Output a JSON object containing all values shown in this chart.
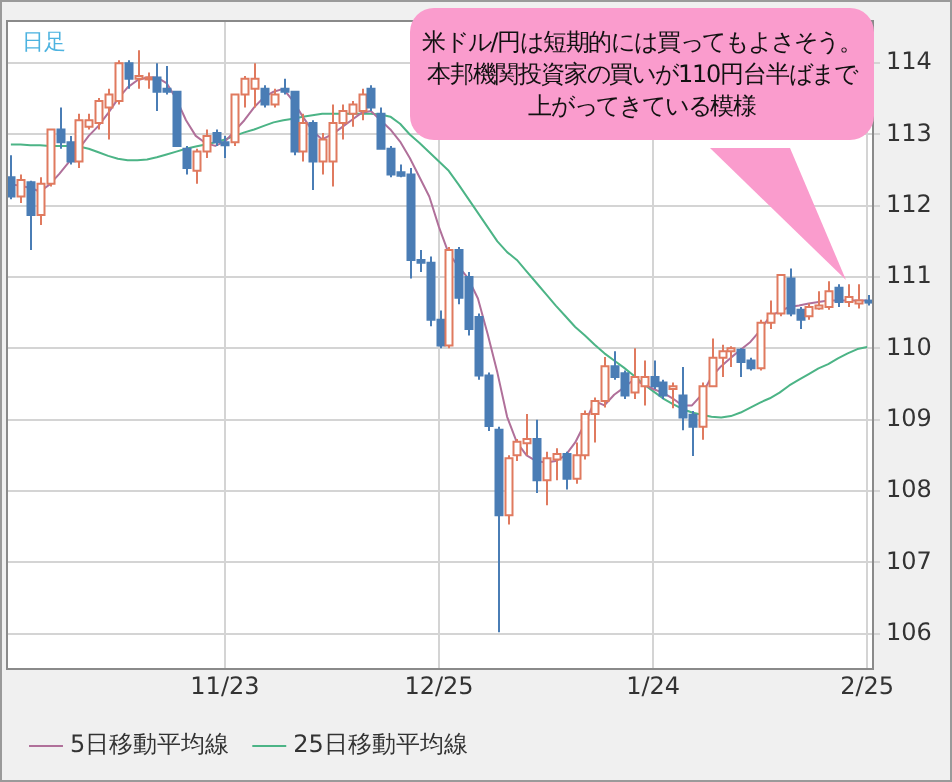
{
  "chart_data": {
    "type": "candlestick",
    "subtitle": "日足",
    "categories": [
      null,
      null,
      null,
      null,
      null,
      null,
      null,
      null,
      null,
      null,
      null,
      null,
      null,
      null,
      null,
      null,
      null,
      null,
      null,
      null,
      null,
      null,
      "11/23",
      null,
      null,
      null,
      null,
      null,
      null,
      null,
      null,
      null,
      null,
      null,
      null,
      null,
      null,
      null,
      null,
      null,
      null,
      null,
      null,
      null,
      "12/25",
      null,
      null,
      null,
      null,
      null,
      null,
      null,
      null,
      null,
      null,
      null,
      null,
      null,
      null,
      null,
      null,
      null,
      null,
      null,
      null,
      null,
      "1/24",
      null,
      null,
      null,
      null,
      null,
      null,
      null,
      null,
      null,
      null,
      null,
      null,
      null,
      null,
      null,
      null,
      null,
      null,
      null,
      null,
      null,
      "2/25"
    ],
    "ohlc": [
      [
        112.4,
        112.71,
        112.09,
        112.13
      ],
      [
        112.13,
        112.44,
        112.04,
        112.36
      ],
      [
        112.33,
        112.35,
        111.38,
        111.87
      ],
      [
        111.87,
        112.4,
        111.73,
        112.31
      ],
      [
        112.31,
        113.07,
        112.27,
        113.07
      ],
      [
        113.07,
        113.38,
        112.8,
        112.89
      ],
      [
        112.89,
        112.98,
        112.58,
        112.62
      ],
      [
        112.62,
        113.29,
        112.53,
        113.2
      ],
      [
        113.11,
        113.29,
        113.07,
        113.2
      ],
      [
        113.16,
        113.51,
        113.07,
        113.47
      ],
      [
        113.38,
        113.64,
        112.93,
        113.56
      ],
      [
        113.47,
        114.04,
        113.42,
        114.0
      ],
      [
        114.0,
        114.04,
        113.64,
        113.78
      ],
      [
        113.78,
        114.18,
        113.64,
        113.82
      ],
      [
        113.78,
        113.87,
        113.64,
        113.8
      ],
      [
        113.8,
        114.0,
        113.33,
        113.6
      ],
      [
        113.64,
        113.96,
        113.56,
        113.6
      ],
      [
        113.6,
        113.6,
        112.84,
        112.84
      ],
      [
        112.8,
        112.84,
        112.44,
        112.53
      ],
      [
        112.49,
        112.8,
        112.31,
        112.76
      ],
      [
        112.76,
        113.07,
        112.67,
        112.98
      ],
      [
        113.02,
        113.07,
        112.84,
        112.89
      ],
      [
        112.89,
        112.98,
        112.67,
        112.85
      ],
      [
        112.89,
        113.56,
        112.84,
        113.56
      ],
      [
        113.56,
        113.82,
        113.38,
        113.78
      ],
      [
        113.64,
        114.0,
        113.38,
        113.78
      ],
      [
        113.64,
        113.69,
        113.38,
        113.42
      ],
      [
        113.42,
        113.64,
        113.38,
        113.56
      ],
      [
        113.64,
        113.78,
        113.56,
        113.6
      ],
      [
        113.6,
        113.6,
        112.71,
        112.76
      ],
      [
        112.76,
        113.29,
        112.62,
        113.16
      ],
      [
        113.16,
        113.2,
        112.22,
        112.62
      ],
      [
        112.62,
        113.02,
        112.44,
        112.93
      ],
      [
        112.62,
        113.42,
        112.27,
        113.16
      ],
      [
        113.16,
        113.42,
        112.93,
        113.33
      ],
      [
        113.29,
        113.47,
        113.11,
        113.42
      ],
      [
        113.33,
        113.64,
        113.2,
        113.56
      ],
      [
        113.64,
        113.69,
        113.33,
        113.38
      ],
      [
        113.29,
        113.38,
        112.8,
        112.8
      ],
      [
        112.8,
        112.84,
        112.4,
        112.44
      ],
      [
        112.47,
        112.58,
        112.4,
        112.42
      ],
      [
        112.44,
        112.53,
        110.98,
        111.24
      ],
      [
        111.24,
        111.38,
        111.07,
        111.2
      ],
      [
        111.2,
        111.29,
        110.31,
        110.4
      ],
      [
        110.4,
        110.53,
        110.0,
        110.04
      ],
      [
        110.04,
        111.42,
        110.0,
        111.38
      ],
      [
        111.38,
        111.42,
        110.62,
        110.71
      ],
      [
        111.0,
        111.07,
        110.18,
        110.27
      ],
      [
        110.44,
        110.49,
        109.56,
        109.62
      ],
      [
        109.62,
        109.66,
        108.84,
        108.91
      ],
      [
        108.86,
        108.9,
        106.02,
        107.66
      ],
      [
        107.66,
        108.5,
        107.53,
        108.46
      ],
      [
        108.5,
        108.73,
        108.42,
        108.69
      ],
      [
        108.67,
        109.08,
        108.5,
        108.73
      ],
      [
        108.73,
        109.0,
        107.97,
        108.15
      ],
      [
        108.15,
        108.55,
        107.8,
        108.46
      ],
      [
        108.44,
        108.6,
        108.15,
        108.52
      ],
      [
        108.52,
        108.55,
        108.02,
        108.17
      ],
      [
        108.17,
        108.68,
        108.1,
        108.5
      ],
      [
        108.5,
        109.13,
        108.44,
        109.08
      ],
      [
        109.08,
        109.31,
        108.68,
        109.26
      ],
      [
        109.26,
        109.88,
        109.17,
        109.75
      ],
      [
        109.75,
        109.96,
        109.56,
        109.6
      ],
      [
        109.65,
        109.69,
        109.29,
        109.34
      ],
      [
        109.38,
        110.0,
        109.29,
        109.6
      ],
      [
        109.47,
        109.83,
        109.2,
        109.6
      ],
      [
        109.6,
        109.83,
        109.43,
        109.47
      ],
      [
        109.52,
        109.56,
        109.29,
        109.34
      ],
      [
        109.43,
        109.52,
        109.16,
        109.47
      ],
      [
        109.34,
        109.74,
        108.85,
        109.03
      ],
      [
        109.07,
        109.12,
        108.49,
        108.9
      ],
      [
        108.9,
        109.52,
        108.72,
        109.47
      ],
      [
        109.47,
        110.14,
        109.47,
        109.87
      ],
      [
        109.87,
        110.05,
        109.6,
        109.96
      ],
      [
        109.96,
        110.03,
        109.74,
        110.0
      ],
      [
        109.98,
        110.0,
        109.6,
        109.81
      ],
      [
        109.83,
        109.87,
        109.69,
        109.72
      ],
      [
        109.72,
        110.4,
        109.69,
        110.36
      ],
      [
        110.36,
        110.67,
        110.27,
        110.49
      ],
      [
        110.49,
        111.03,
        110.45,
        111.03
      ],
      [
        110.98,
        111.12,
        110.45,
        110.49
      ],
      [
        110.54,
        110.58,
        110.27,
        110.4
      ],
      [
        110.45,
        110.63,
        110.4,
        110.58
      ],
      [
        110.56,
        110.8,
        110.54,
        110.6
      ],
      [
        110.58,
        110.94,
        110.54,
        110.8
      ],
      [
        110.85,
        110.9,
        110.58,
        110.65
      ],
      [
        110.65,
        110.9,
        110.58,
        110.72
      ],
      [
        110.63,
        110.9,
        110.56,
        110.67
      ],
      [
        110.67,
        110.75,
        110.6,
        110.65
      ]
    ],
    "colors": [
      "#4a7db5",
      "#e07a5f",
      "#4a7db5",
      "#e07a5f",
      "#e07a5f",
      "#4a7db5",
      "#4a7db5",
      "#e07a5f",
      "#e07a5f",
      "#e07a5f",
      "#e07a5f",
      "#e07a5f",
      "#4a7db5",
      "#e07a5f",
      "#e07a5f",
      "#4a7db5",
      "#4a7db5",
      "#4a7db5",
      "#4a7db5",
      "#e07a5f",
      "#e07a5f",
      "#4a7db5",
      "#4a7db5",
      "#e07a5f",
      "#e07a5f",
      "#e07a5f",
      "#4a7db5",
      "#e07a5f",
      "#4a7db5",
      "#4a7db5",
      "#e07a5f",
      "#4a7db5",
      "#e07a5f",
      "#e07a5f",
      "#e07a5f",
      "#e07a5f",
      "#e07a5f",
      "#4a7db5",
      "#4a7db5",
      "#4a7db5",
      "#4a7db5",
      "#4a7db5",
      "#4a7db5",
      "#4a7db5",
      "#4a7db5",
      "#e07a5f",
      "#4a7db5",
      "#4a7db5",
      "#4a7db5",
      "#4a7db5",
      "#4a7db5",
      "#e07a5f",
      "#e07a5f",
      "#e07a5f",
      "#4a7db5",
      "#e07a5f",
      "#e07a5f",
      "#4a7db5",
      "#e07a5f",
      "#e07a5f",
      "#e07a5f",
      "#e07a5f",
      "#4a7db5",
      "#4a7db5",
      "#e07a5f",
      "#e07a5f",
      "#4a7db5",
      "#4a7db5",
      "#e07a5f",
      "#4a7db5",
      "#4a7db5",
      "#e07a5f",
      "#e07a5f",
      "#e07a5f",
      "#e07a5f",
      "#4a7db5",
      "#4a7db5",
      "#e07a5f",
      "#e07a5f",
      "#e07a5f",
      "#4a7db5",
      "#4a7db5",
      "#e07a5f",
      "#e07a5f",
      "#e07a5f",
      "#4a7db5",
      "#e07a5f",
      "#e07a5f",
      "#4a7db5"
    ],
    "series": [
      {
        "type": "line",
        "name": "5日移動平均線",
        "color": "#b0709a",
        "values": [
          112.3,
          112.28,
          112.25,
          112.2,
          112.3,
          112.45,
          112.62,
          112.8,
          112.98,
          113.12,
          113.3,
          113.5,
          113.66,
          113.76,
          113.8,
          113.8,
          113.72,
          113.5,
          113.2,
          112.98,
          112.88,
          112.84,
          112.9,
          113.05,
          113.2,
          113.38,
          113.52,
          113.6,
          113.64,
          113.47,
          113.25,
          113.05,
          112.93,
          113.0,
          113.1,
          113.2,
          113.3,
          113.33,
          113.2,
          113.07,
          112.9,
          112.67,
          112.4,
          112.13,
          111.7,
          111.33,
          111.15,
          110.98,
          110.7,
          110.2,
          109.66,
          109.04,
          108.68,
          108.5,
          108.42,
          108.4,
          108.42,
          108.5,
          108.68,
          108.95,
          109.26,
          109.2,
          109.35,
          109.45,
          109.56,
          109.5,
          109.43,
          109.38,
          109.3,
          109.2,
          109.2,
          109.35,
          109.6,
          109.75,
          109.87,
          109.98,
          110.09,
          110.25,
          110.45,
          110.52,
          110.58,
          110.6,
          110.63,
          110.65,
          110.67,
          110.67,
          110.67,
          110.67,
          110.67
        ]
      },
      {
        "type": "line",
        "name": "25日移動平均線",
        "color": "#4cb486",
        "values": [
          112.86,
          112.86,
          112.85,
          112.85,
          112.84,
          112.84,
          112.84,
          112.83,
          112.8,
          112.75,
          112.7,
          112.66,
          112.64,
          112.64,
          112.65,
          112.68,
          112.72,
          112.76,
          112.8,
          112.83,
          112.86,
          112.89,
          112.93,
          112.98,
          113.03,
          113.07,
          113.12,
          113.17,
          113.2,
          113.22,
          113.25,
          113.27,
          113.29,
          113.29,
          113.29,
          113.29,
          113.29,
          113.29,
          113.28,
          113.25,
          113.15,
          113.0,
          112.88,
          112.75,
          112.62,
          112.49,
          112.3,
          112.1,
          111.9,
          111.7,
          111.5,
          111.35,
          111.24,
          111.08,
          110.92,
          110.76,
          110.6,
          110.45,
          110.3,
          110.18,
          110.05,
          109.93,
          109.83,
          109.73,
          109.62,
          109.5,
          109.4,
          109.3,
          109.22,
          109.15,
          109.1,
          109.07,
          109.04,
          109.03,
          109.05,
          109.1,
          109.17,
          109.24,
          109.3,
          109.38,
          109.48,
          109.56,
          109.64,
          109.72,
          109.78,
          109.86,
          109.93,
          109.99,
          110.02
        ]
      }
    ],
    "ylim": [
      105.5,
      114.6
    ],
    "yticks": [
      106,
      107,
      108,
      109,
      110,
      111,
      112,
      113,
      114
    ],
    "grid": true,
    "legend": "bottom left",
    "marker": "none",
    "annotations": [
      "米ドル/円は短期的には買ってもよさそう。本邦機関投資家の買いが110円台半ばまで上がってきている模様"
    ]
  }
}
